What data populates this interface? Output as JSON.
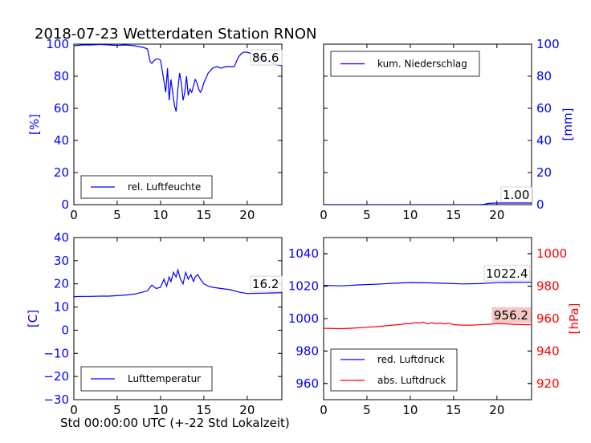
{
  "title": "2018-07-23 Wetterdaten Station RNON",
  "xlabel": "Std 00:00:00 UTC (+-22 Std Lokalzeit)",
  "colors": {
    "blue": "#0000ff",
    "red": "#ff0000",
    "axis": "#000000"
  },
  "chart_data": [
    {
      "type": "line",
      "id": "humidity",
      "ylabel": "[%]",
      "ylim": [
        0,
        100
      ],
      "yticks": [
        "0",
        "20",
        "40",
        "60",
        "80",
        "100"
      ],
      "xlim": [
        0,
        24
      ],
      "xticks": [
        "0",
        "5",
        "10",
        "15",
        "20"
      ],
      "legend_position": "lower-left",
      "last_value_label": "86.6",
      "series": [
        {
          "name": "rel. Luftfeuchte",
          "color": "#0000ff",
          "x": [
            0,
            1,
            2,
            3,
            4,
            5,
            6,
            7,
            8,
            8.5,
            8.8,
            9,
            9.3,
            9.6,
            10,
            10.3,
            10.6,
            10.8,
            11,
            11.2,
            11.4,
            11.6,
            11.8,
            12,
            12.2,
            12.4,
            12.6,
            12.8,
            13,
            13.2,
            13.4,
            13.6,
            13.8,
            14,
            14.2,
            14.4,
            14.6,
            14.8,
            15,
            15.5,
            16,
            16.5,
            17,
            17.5,
            18,
            18.5,
            19,
            19.3,
            19.6,
            20,
            20.5,
            21,
            21.5,
            22,
            22.5,
            23,
            23.5,
            24
          ],
          "y": [
            99,
            99.5,
            99.5,
            99.8,
            99.5,
            99.2,
            99.5,
            99,
            98,
            97,
            89,
            88,
            90,
            91,
            90,
            80,
            70,
            85,
            65,
            78,
            70,
            62,
            58,
            72,
            82,
            76,
            65,
            70,
            80,
            68,
            72,
            70,
            74,
            78,
            76,
            72,
            70,
            72,
            76,
            82,
            85,
            86,
            85,
            86,
            86,
            86,
            92,
            94,
            95,
            95,
            94,
            93,
            92,
            90,
            89,
            88,
            87,
            86.6
          ]
        }
      ]
    },
    {
      "type": "line",
      "id": "precipitation",
      "ylabel": "[mm]",
      "ylim": [
        0,
        100
      ],
      "yticks": [
        "0",
        "20",
        "40",
        "60",
        "80",
        "100"
      ],
      "xlim": [
        0,
        24
      ],
      "xticks": [
        "0",
        "5",
        "10",
        "15",
        "20"
      ],
      "legend_position": "top-left",
      "last_value_label": "1.00",
      "series": [
        {
          "name": "kum. Niederschlag",
          "color": "#0000ff",
          "x": [
            0,
            18,
            18.5,
            19,
            20,
            24
          ],
          "y": [
            0,
            0,
            0.2,
            0.8,
            1.0,
            1.0
          ]
        }
      ]
    },
    {
      "type": "line",
      "id": "temperature",
      "ylabel": "[C]",
      "ylim": [
        -30,
        40
      ],
      "yticks": [
        "−30",
        "−20",
        "−10",
        "0",
        "10",
        "20",
        "30",
        "40"
      ],
      "xlim": [
        0,
        24
      ],
      "xticks": [
        "0",
        "5",
        "10",
        "15",
        "20"
      ],
      "legend_position": "lower-left",
      "last_value_label": "16.2",
      "series": [
        {
          "name": "Lufttemperatur",
          "color": "#0000ff",
          "x": [
            0,
            1,
            2,
            3,
            4,
            5,
            6,
            7,
            8,
            8.5,
            9,
            9.5,
            10,
            10.4,
            10.7,
            11,
            11.2,
            11.5,
            11.8,
            12,
            12.3,
            12.6,
            12.9,
            13.2,
            13.5,
            13.8,
            14,
            14.3,
            14.6,
            15,
            15.5,
            16,
            17,
            18,
            19,
            20,
            21,
            22,
            23,
            24
          ],
          "y": [
            14.5,
            14.6,
            14.6,
            14.7,
            14.7,
            14.9,
            15.2,
            15.6,
            16.5,
            17,
            19.5,
            18,
            18.5,
            22,
            19,
            23,
            21,
            25,
            23,
            26,
            22,
            20,
            25,
            22,
            24,
            21,
            23,
            24,
            22,
            20,
            19,
            18.5,
            18,
            17.5,
            16.5,
            15.8,
            15.9,
            16,
            16.1,
            16.2
          ]
        }
      ]
    },
    {
      "type": "line",
      "id": "pressure",
      "ylabel": "[hPa]",
      "ylim": [
        950,
        1050
      ],
      "yticks": [
        "960",
        "980",
        "1000",
        "1020",
        "1040"
      ],
      "ylim_right": [
        910,
        1010
      ],
      "yticks_right": [
        "920",
        "940",
        "960",
        "980",
        "1000"
      ],
      "xlim": [
        0,
        24
      ],
      "xticks": [
        "0",
        "5",
        "10",
        "15",
        "20"
      ],
      "legend_position": "lower-left",
      "last_value_labels": [
        "1022.4",
        "956.2"
      ],
      "series": [
        {
          "name": "red. Luftdruck",
          "color": "#0000ff",
          "axis": "left",
          "x": [
            0,
            2,
            4,
            6,
            8,
            10,
            12,
            14,
            16,
            18,
            20,
            22,
            24
          ],
          "y": [
            1020.5,
            1020.2,
            1020.8,
            1021.2,
            1021.8,
            1022.3,
            1022.1,
            1021.8,
            1021.4,
            1021.6,
            1022.2,
            1022.4,
            1022.4
          ]
        },
        {
          "name": "abs. Luftdruck",
          "color": "#ff0000",
          "axis": "right",
          "x": [
            0,
            2,
            3,
            4,
            5,
            6,
            7,
            8,
            9,
            9.5,
            10,
            10.5,
            11,
            11.5,
            12,
            12.5,
            13,
            13.5,
            14,
            14.5,
            15,
            16,
            17,
            18,
            19,
            20,
            21,
            22,
            23,
            24
          ],
          "y": [
            954,
            953.8,
            954,
            954.3,
            954.7,
            955,
            955.5,
            956,
            956.5,
            957,
            956.8,
            957.5,
            957.3,
            957.8,
            956.8,
            957.5,
            957,
            957.3,
            956.8,
            957.2,
            956.3,
            956,
            956,
            956.2,
            956.5,
            957,
            956.8,
            956.5,
            956.3,
            956.2
          ]
        }
      ]
    }
  ]
}
